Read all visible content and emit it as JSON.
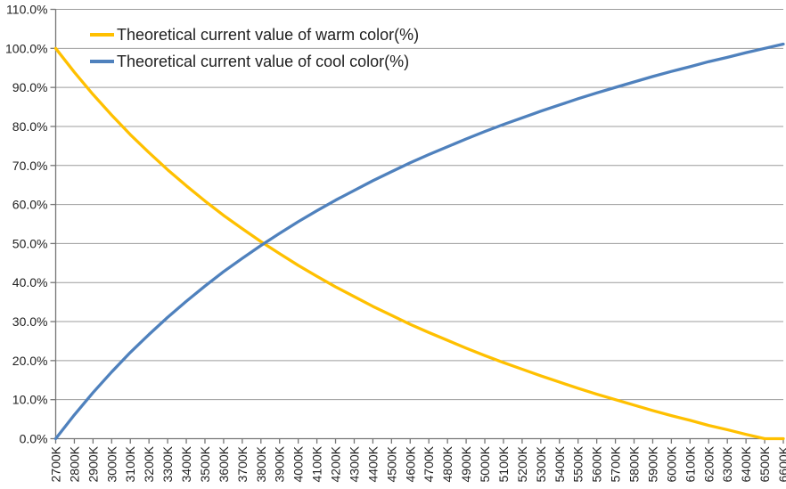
{
  "chart_data": {
    "type": "line",
    "title": "",
    "xlabel": "",
    "ylabel": "",
    "x": [
      "2700K",
      "2800K",
      "2900K",
      "3000K",
      "3100K",
      "3200K",
      "3300K",
      "3400K",
      "3500K",
      "3600K",
      "3700K",
      "3800K",
      "3900K",
      "4000K",
      "4100K",
      "4200K",
      "4300K",
      "4400K",
      "4500K",
      "4600K",
      "4700K",
      "4800K",
      "4900K",
      "5000K",
      "5100K",
      "5200K",
      "5300K",
      "5400K",
      "5500K",
      "5600K",
      "5700K",
      "5800K",
      "5900K",
      "6000K",
      "6100K",
      "6200K",
      "6300K",
      "6400K",
      "6500K",
      "6600K"
    ],
    "series": [
      {
        "name": "Theoretical current value of warm color(%)",
        "color": "#FFC000",
        "values": [
          100.0,
          93.9,
          88.2,
          82.9,
          77.9,
          73.3,
          68.9,
          64.8,
          60.9,
          57.2,
          53.8,
          50.5,
          47.4,
          44.4,
          41.6,
          38.9,
          36.4,
          33.9,
          31.6,
          29.3,
          27.2,
          25.2,
          23.2,
          21.3,
          19.5,
          17.8,
          16.1,
          14.5,
          12.9,
          11.4,
          10.0,
          8.6,
          7.2,
          5.9,
          4.7,
          3.4,
          2.3,
          1.1,
          0.0,
          0.0
        ]
      },
      {
        "name": "Theoretical current value of cool color(%)",
        "color": "#4F81BD",
        "values": [
          0.0,
          6.1,
          11.8,
          17.1,
          22.1,
          26.7,
          31.1,
          35.2,
          39.1,
          42.8,
          46.2,
          49.5,
          52.6,
          55.6,
          58.4,
          61.1,
          63.6,
          66.1,
          68.4,
          70.7,
          72.8,
          74.8,
          76.8,
          78.7,
          80.5,
          82.2,
          83.9,
          85.5,
          87.1,
          88.6,
          90.0,
          91.4,
          92.8,
          94.1,
          95.3,
          96.6,
          97.7,
          98.9,
          100.0,
          101.1
        ]
      }
    ],
    "y_tick_labels": [
      "0.0%",
      "10.0%",
      "20.0%",
      "30.0%",
      "40.0%",
      "50.0%",
      "60.0%",
      "70.0%",
      "80.0%",
      "90.0%",
      "100.0%",
      "110.0%"
    ],
    "ylim": [
      0,
      110
    ],
    "y_step": 10,
    "grid": "horizontal",
    "legend_position": "inside-top-left"
  },
  "style": {
    "gridline_color": "#9C9C9C",
    "axis_color": "#767676",
    "tick_label_color": "#1f1f1f",
    "series_stroke_width": 3.3,
    "background": "#ffffff"
  }
}
